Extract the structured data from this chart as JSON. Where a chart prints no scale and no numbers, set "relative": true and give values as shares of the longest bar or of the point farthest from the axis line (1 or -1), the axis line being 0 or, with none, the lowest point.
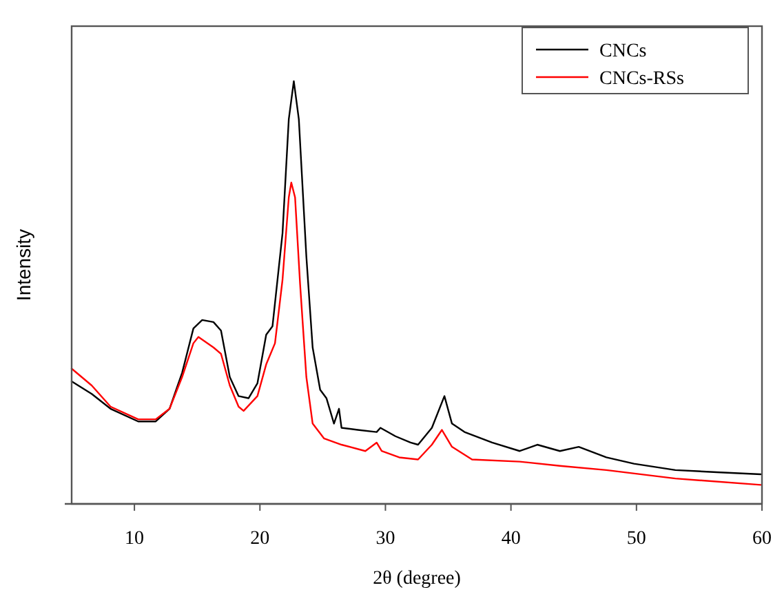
{
  "chart_data": {
    "type": "line",
    "xlabel": "2θ (degree)",
    "ylabel": "Intensity",
    "relative": true,
    "xlim": [
      5,
      60
    ],
    "xticks": [
      10,
      20,
      30,
      40,
      50,
      60
    ],
    "grid": false,
    "legend": "top right",
    "marker": "none",
    "line_style": "solid",
    "series": [
      {
        "name": "CNCs",
        "color": "#000000",
        "x": [
          5,
          6.6,
          8.1,
          10.3,
          11.7,
          12.8,
          13.8,
          14.7,
          15.4,
          16.3,
          16.9,
          17.6,
          18.3,
          19.1,
          19.8,
          20.5,
          21.0,
          21.8,
          22.3,
          22.7,
          23.1,
          23.7,
          24.2,
          24.8,
          25.3,
          25.9,
          26.3,
          26.5,
          27.8,
          29.3,
          29.6,
          30.8,
          32.0,
          32.6,
          33.7,
          34.7,
          35.3,
          36.3,
          38.5,
          40.7,
          42.1,
          43.9,
          45.4,
          47.6,
          49.8,
          53.1,
          56.4,
          59.9
        ],
        "values": [
          0.29,
          0.26,
          0.225,
          0.195,
          0.195,
          0.225,
          0.31,
          0.415,
          0.435,
          0.43,
          0.41,
          0.3,
          0.255,
          0.25,
          0.285,
          0.4,
          0.42,
          0.64,
          0.91,
          1,
          0.91,
          0.585,
          0.37,
          0.27,
          0.25,
          0.19,
          0.225,
          0.18,
          0.175,
          0.17,
          0.18,
          0.16,
          0.145,
          0.14,
          0.18,
          0.255,
          0.19,
          0.17,
          0.145,
          0.125,
          0.14,
          0.125,
          0.135,
          0.11,
          0.095,
          0.08,
          0.075,
          0.07
        ]
      },
      {
        "name": "CNCs-RSs",
        "color": "#ff0000",
        "x": [
          5,
          6.6,
          8.1,
          10.3,
          11.7,
          12.8,
          13.8,
          14.7,
          15.1,
          16.3,
          16.9,
          17.6,
          18.3,
          18.7,
          19.8,
          20.5,
          21.2,
          21.8,
          22.3,
          22.5,
          22.8,
          23.2,
          23.7,
          24.2,
          25.1,
          26.5,
          28.4,
          29.3,
          29.7,
          31.1,
          32.6,
          33.7,
          34.5,
          35.3,
          36.9,
          40.7,
          43.9,
          47.6,
          53.1,
          59.9
        ],
        "values": [
          0.32,
          0.28,
          0.23,
          0.2,
          0.2,
          0.225,
          0.3,
          0.38,
          0.395,
          0.37,
          0.355,
          0.28,
          0.23,
          0.22,
          0.255,
          0.33,
          0.38,
          0.53,
          0.725,
          0.76,
          0.725,
          0.52,
          0.3,
          0.19,
          0.155,
          0.14,
          0.125,
          0.145,
          0.125,
          0.11,
          0.105,
          0.14,
          0.175,
          0.135,
          0.105,
          0.1,
          0.09,
          0.08,
          0.06,
          0.045
        ]
      }
    ]
  }
}
